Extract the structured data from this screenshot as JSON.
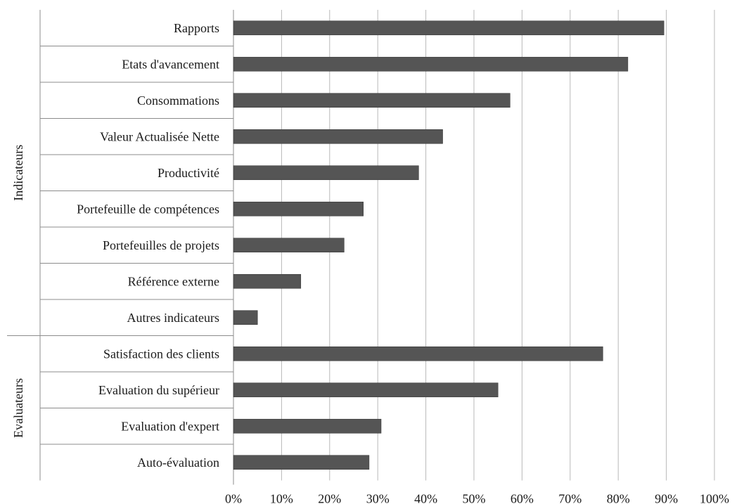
{
  "chart_data": {
    "type": "bar",
    "orientation": "horizontal",
    "title": "",
    "xlabel": "",
    "ylabel": "",
    "xlim": [
      0,
      100
    ],
    "grid": true,
    "legend": "none",
    "bar_color": "#555555",
    "x_ticks": [
      "0%",
      "10%",
      "20%",
      "30%",
      "40%",
      "50%",
      "60%",
      "70%",
      "80%",
      "90%",
      "100%"
    ],
    "groups": [
      {
        "name": "Indicateurs",
        "categories": [
          "Rapports",
          "Etats d'avancement",
          "Consommations",
          "Valeur Actualisée Nette",
          "Productivité",
          "Portefeuille de compétences",
          "Portefeuilles de projets",
          "Référence externe",
          "Autres indicateurs"
        ],
        "values": [
          89.5,
          82,
          57.5,
          43.5,
          38.5,
          27,
          23,
          14,
          5
        ]
      },
      {
        "name": "Evaluateurs",
        "categories": [
          "Satisfaction des clients",
          "Evaluation du supérieur",
          "Evaluation d'expert",
          "Auto-évaluation"
        ],
        "values": [
          76.8,
          55,
          30.7,
          28.2
        ]
      }
    ]
  }
}
